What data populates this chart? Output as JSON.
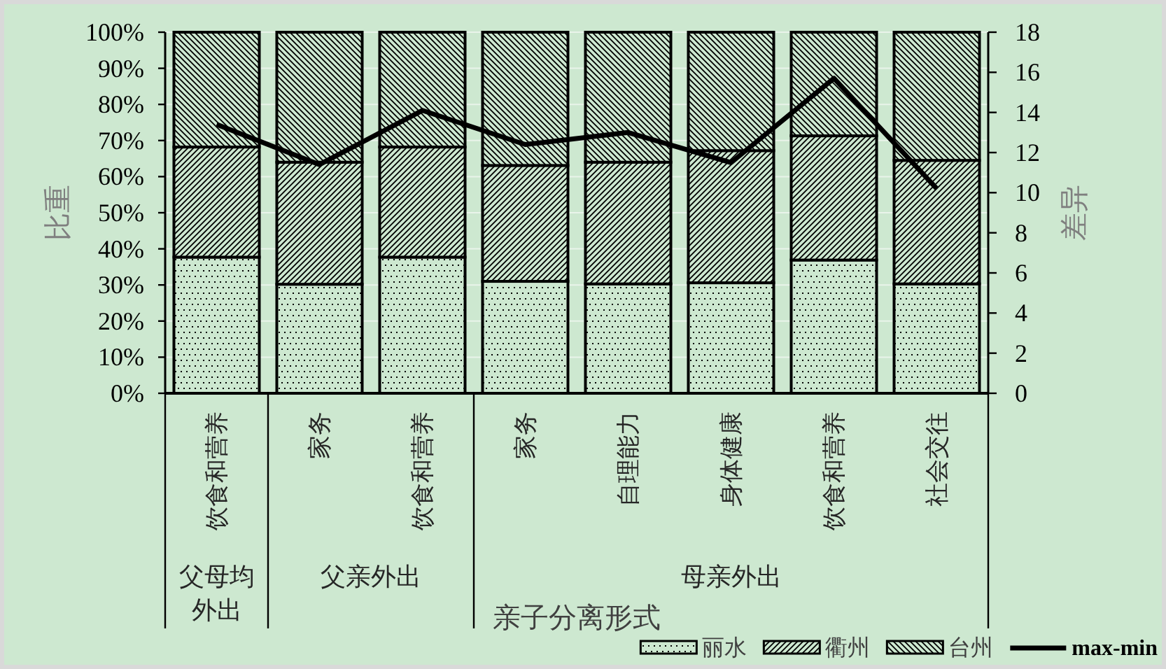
{
  "chart_data": {
    "type": "bar",
    "stacked": true,
    "categories": [
      "饮食和营养",
      "家务",
      "饮食和营养",
      "家务",
      "自理能力",
      "身体健康",
      "饮食和营养",
      "社会交往"
    ],
    "series": [
      {
        "name": "丽水",
        "color": "#000000",
        "values": [
          37.7,
          30.2,
          37.7,
          31.0,
          30.3,
          30.6,
          36.9,
          30.3
        ]
      },
      {
        "name": "衢州",
        "color": "#000000",
        "values": [
          30.5,
          33.8,
          30.5,
          32.1,
          33.7,
          36.6,
          34.4,
          34.2
        ]
      },
      {
        "name": "台州",
        "color": "#000000",
        "values": [
          31.8,
          36.0,
          31.8,
          36.9,
          36.0,
          32.8,
          28.7,
          35.5
        ]
      },
      {
        "name": "max-min",
        "type": "line",
        "axis": "y2",
        "color": "#000000",
        "values": [
          13.4,
          11.4,
          14.1,
          12.4,
          13.0,
          11.5,
          15.7,
          10.2
        ]
      }
    ],
    "ylim": [
      0,
      100
    ],
    "yticks": [
      {
        "value": 0,
        "label": "0%"
      },
      {
        "value": 10,
        "label": "10%"
      },
      {
        "value": 20,
        "label": "20%"
      },
      {
        "value": 30,
        "label": "30%"
      },
      {
        "value": 40,
        "label": "40%"
      },
      {
        "value": 50,
        "label": "50%"
      },
      {
        "value": 60,
        "label": "60%"
      },
      {
        "value": 70,
        "label": "70%"
      },
      {
        "value": 80,
        "label": "80%"
      },
      {
        "value": 90,
        "label": "90%"
      },
      {
        "value": 100,
        "label": "100%"
      }
    ],
    "y2lim": [
      0,
      18
    ],
    "y2ticks": [
      0,
      2,
      4,
      6,
      8,
      10,
      12,
      14,
      16,
      18
    ],
    "ylabel": "比重",
    "y2label": "差异",
    "xlabel": "亲子分离形式",
    "annotations": [
      "父母均外出",
      "父亲外出",
      "母亲外出"
    ],
    "grid": "y",
    "legend": "bottom right",
    "line_style": "solid"
  }
}
